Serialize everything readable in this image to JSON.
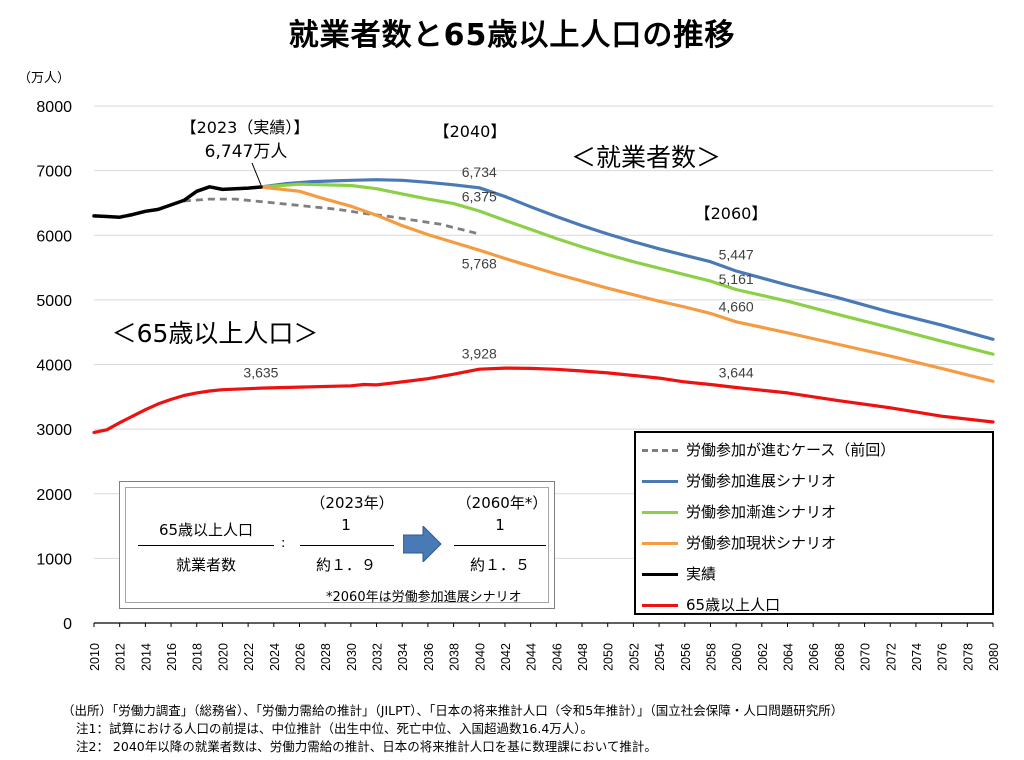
{
  "title": "就業者数と65歳以上人口の推移",
  "chart_data": {
    "type": "line",
    "ylabel": "（万人）",
    "ylim": [
      0,
      8000
    ],
    "yticks": [
      0,
      1000,
      2000,
      3000,
      4000,
      5000,
      6000,
      7000,
      8000
    ],
    "xlim": [
      2010,
      2080
    ],
    "xticks": [
      2010,
      2012,
      2014,
      2016,
      2018,
      2020,
      2022,
      2024,
      2026,
      2028,
      2030,
      2032,
      2034,
      2036,
      2038,
      2040,
      2042,
      2044,
      2046,
      2048,
      2050,
      2052,
      2054,
      2056,
      2058,
      2060,
      2062,
      2064,
      2066,
      2068,
      2070,
      2072,
      2074,
      2076,
      2078,
      2080
    ],
    "grid": true,
    "series": [
      {
        "name": "労働参加が進むケース（前回）",
        "color": "#7f7f7f",
        "dash": true,
        "points": [
          [
            2017,
            6530
          ],
          [
            2019,
            6560
          ],
          [
            2021,
            6560
          ],
          [
            2023,
            6520
          ],
          [
            2025,
            6480
          ],
          [
            2027,
            6440
          ],
          [
            2029,
            6400
          ],
          [
            2031,
            6340
          ],
          [
            2033,
            6290
          ],
          [
            2035,
            6230
          ],
          [
            2037,
            6170
          ],
          [
            2040,
            6020
          ]
        ]
      },
      {
        "name": "労働参加進展シナリオ",
        "color": "#4a7ab5",
        "points": [
          [
            2023,
            6747
          ],
          [
            2025,
            6800
          ],
          [
            2027,
            6830
          ],
          [
            2030,
            6850
          ],
          [
            2032,
            6860
          ],
          [
            2034,
            6850
          ],
          [
            2036,
            6820
          ],
          [
            2038,
            6780
          ],
          [
            2040,
            6734
          ],
          [
            2042,
            6600
          ],
          [
            2044,
            6440
          ],
          [
            2046,
            6290
          ],
          [
            2048,
            6150
          ],
          [
            2050,
            6020
          ],
          [
            2052,
            5900
          ],
          [
            2054,
            5790
          ],
          [
            2056,
            5690
          ],
          [
            2058,
            5590
          ],
          [
            2060,
            5447
          ],
          [
            2064,
            5230
          ],
          [
            2068,
            5030
          ],
          [
            2072,
            4810
          ],
          [
            2076,
            4610
          ],
          [
            2080,
            4390
          ]
        ]
      },
      {
        "name": "労働参加漸進シナリオ",
        "color": "#8cd048",
        "points": [
          [
            2023,
            6747
          ],
          [
            2026,
            6790
          ],
          [
            2030,
            6770
          ],
          [
            2032,
            6720
          ],
          [
            2034,
            6640
          ],
          [
            2036,
            6560
          ],
          [
            2038,
            6490
          ],
          [
            2040,
            6375
          ],
          [
            2042,
            6230
          ],
          [
            2044,
            6090
          ],
          [
            2046,
            5950
          ],
          [
            2048,
            5820
          ],
          [
            2050,
            5700
          ],
          [
            2052,
            5590
          ],
          [
            2054,
            5490
          ],
          [
            2056,
            5390
          ],
          [
            2058,
            5290
          ],
          [
            2060,
            5161
          ],
          [
            2064,
            4980
          ],
          [
            2068,
            4770
          ],
          [
            2072,
            4570
          ],
          [
            2076,
            4360
          ],
          [
            2080,
            4160
          ]
        ]
      },
      {
        "name": "労働参加現状シナリオ",
        "color": "#f59c42",
        "points": [
          [
            2023,
            6747
          ],
          [
            2026,
            6680
          ],
          [
            2028,
            6560
          ],
          [
            2030,
            6450
          ],
          [
            2032,
            6310
          ],
          [
            2034,
            6150
          ],
          [
            2036,
            6010
          ],
          [
            2038,
            5890
          ],
          [
            2040,
            5768
          ],
          [
            2042,
            5640
          ],
          [
            2044,
            5520
          ],
          [
            2046,
            5400
          ],
          [
            2048,
            5290
          ],
          [
            2050,
            5180
          ],
          [
            2052,
            5080
          ],
          [
            2054,
            4980
          ],
          [
            2056,
            4890
          ],
          [
            2058,
            4790
          ],
          [
            2060,
            4660
          ],
          [
            2064,
            4490
          ],
          [
            2068,
            4310
          ],
          [
            2072,
            4130
          ],
          [
            2076,
            3940
          ],
          [
            2080,
            3740
          ]
        ]
      },
      {
        "name": "実績",
        "color": "#000000",
        "points": [
          [
            2010,
            6300
          ],
          [
            2011,
            6290
          ],
          [
            2012,
            6280
          ],
          [
            2013,
            6320
          ],
          [
            2014,
            6370
          ],
          [
            2015,
            6400
          ],
          [
            2016,
            6470
          ],
          [
            2017,
            6540
          ],
          [
            2018,
            6680
          ],
          [
            2019,
            6750
          ],
          [
            2020,
            6710
          ],
          [
            2021,
            6720
          ],
          [
            2022,
            6730
          ],
          [
            2023,
            6747
          ]
        ]
      },
      {
        "name": "65歳以上人口",
        "color": "#ee1111",
        "points": [
          [
            2010,
            2950
          ],
          [
            2011,
            2990
          ],
          [
            2012,
            3100
          ],
          [
            2013,
            3200
          ],
          [
            2014,
            3300
          ],
          [
            2015,
            3390
          ],
          [
            2016,
            3460
          ],
          [
            2017,
            3520
          ],
          [
            2018,
            3560
          ],
          [
            2019,
            3590
          ],
          [
            2020,
            3610
          ],
          [
            2022,
            3625
          ],
          [
            2023,
            3635
          ],
          [
            2026,
            3650
          ],
          [
            2030,
            3670
          ],
          [
            2031,
            3690
          ],
          [
            2032,
            3685
          ],
          [
            2034,
            3730
          ],
          [
            2036,
            3780
          ],
          [
            2038,
            3850
          ],
          [
            2040,
            3928
          ],
          [
            2042,
            3945
          ],
          [
            2044,
            3940
          ],
          [
            2046,
            3925
          ],
          [
            2048,
            3900
          ],
          [
            2050,
            3870
          ],
          [
            2052,
            3830
          ],
          [
            2054,
            3790
          ],
          [
            2056,
            3730
          ],
          [
            2058,
            3690
          ],
          [
            2060,
            3644
          ],
          [
            2064,
            3560
          ],
          [
            2068,
            3440
          ],
          [
            2072,
            3330
          ],
          [
            2076,
            3200
          ],
          [
            2080,
            3110
          ]
        ]
      }
    ],
    "data_labels": [
      {
        "text": "3,635",
        "x": 2023,
        "y": 3880
      },
      {
        "text": "3,928",
        "x": 2040,
        "y": 4170
      },
      {
        "text": "3,644",
        "x": 2060,
        "y": 3880
      },
      {
        "text": "6,734",
        "x": 2040,
        "y": 6980
      },
      {
        "text": "6,375",
        "x": 2040,
        "y": 6600
      },
      {
        "text": "5,768",
        "x": 2040,
        "y": 5560
      },
      {
        "text": "5,447",
        "x": 2060,
        "y": 5700
      },
      {
        "text": "5,161",
        "x": 2060,
        "y": 5320
      },
      {
        "text": "4,660",
        "x": 2060,
        "y": 4900
      }
    ],
    "annotations": {
      "year_2023": "【2023（実績）】",
      "value_2023": "6,747万人",
      "year_2040": "【2040】",
      "year_2060": "【2060】",
      "employed": "＜就業者数＞",
      "elderly": "＜65歳以上人口＞"
    },
    "legend_position": "bottom-right"
  },
  "ratio_box": {
    "year_a": "（2023年）",
    "year_b": "（2060年*）",
    "numerator_label": "65歳以上人口",
    "denominator_label": "就業者数",
    "colon": ":",
    "numerator_a": "1",
    "denominator_a": "約１．９",
    "numerator_b": "1",
    "denominator_b": "約１．５",
    "footnote": "*2060年は労働参加進展シナリオ",
    "arrow_color": "#4a7ab5"
  },
  "notes": [
    "（出所）「労働力調査」（総務省）、「労働力需給の推計」（JILPT）、「日本の将来推計人口（令和5年推計）」（国立社会保障・人口問題研究所）",
    "注1：試算における人口の前提は、中位推計（出生中位、死亡中位、入国超過数16.4万人）。",
    "注2： 2040年以降の就業者数は、労働力需給の推計、日本の将来推計人口を基に数理課において推計。"
  ]
}
